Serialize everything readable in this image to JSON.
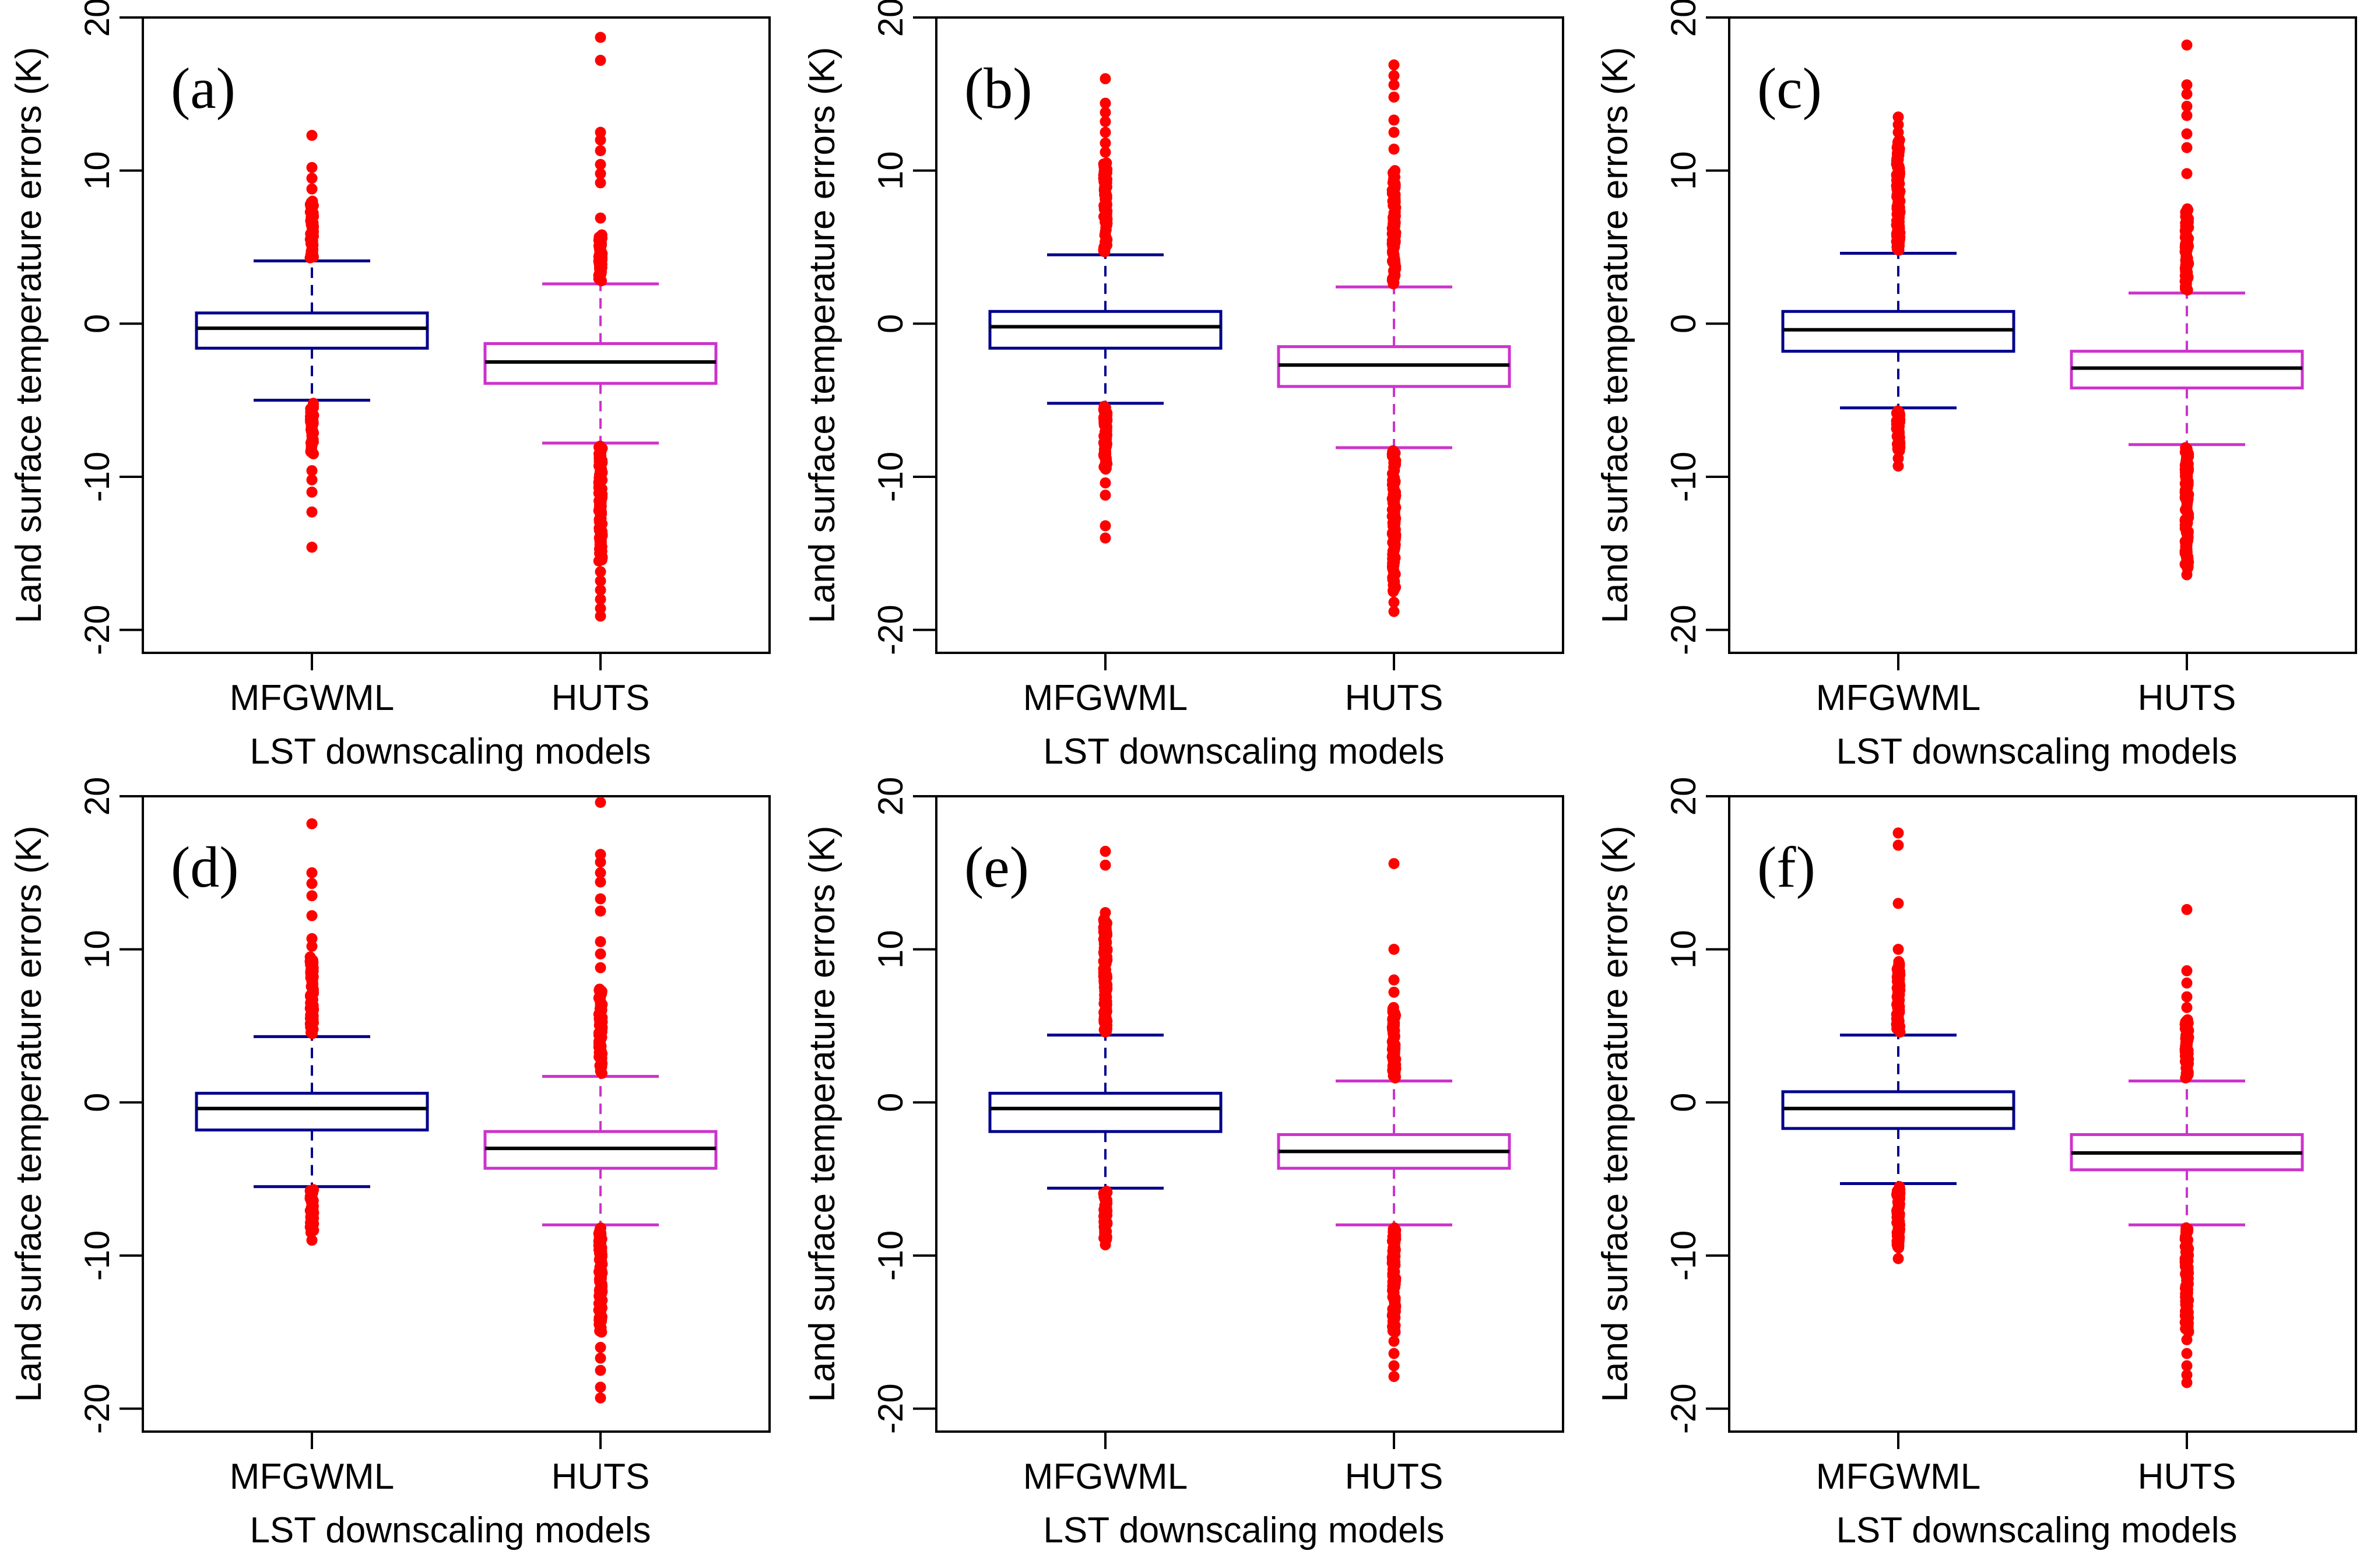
{
  "figure": {
    "x_axis_title": "LST downscaling models",
    "y_axis_title": "Land surface temperature errors (K)"
  },
  "colors": {
    "mfgwml_box": "#00008B",
    "huts_box": "#CC33CC",
    "median": "#000000",
    "outlier": "#FF0000",
    "frame": "#000000"
  },
  "chart_data": [
    {
      "type": "box",
      "panel": "(a)",
      "categories": [
        "MFGWML",
        "HUTS"
      ],
      "xlabel": "LST downscaling models",
      "ylabel": "Land surface temperature errors (K)",
      "ylim": [
        -21.5,
        20
      ],
      "yticks": [
        -20,
        -10,
        0,
        10,
        20
      ],
      "series": [
        {
          "name": "MFGWML",
          "q1": -1.6,
          "median": -0.3,
          "q3": 0.7,
          "whisker_low": -5.0,
          "whisker_high": 4.1,
          "outlier_bands": [
            [
              4.3,
              8.0
            ],
            [
              -8.5,
              -5.2
            ]
          ],
          "outliers": [
            10.2,
            9.5,
            8.8,
            12.3,
            -9.6,
            -10.2,
            -11.0,
            -12.3,
            -14.6
          ]
        },
        {
          "name": "HUTS",
          "q1": -3.9,
          "median": -2.5,
          "q3": -1.3,
          "whisker_low": -7.8,
          "whisker_high": 2.6,
          "outlier_bands": [
            [
              2.8,
              5.8
            ],
            [
              -8.0,
              -15.5
            ]
          ],
          "outliers": [
            6.9,
            9.2,
            9.8,
            10.4,
            11.3,
            12.0,
            12.5,
            17.2,
            18.7,
            -16.2,
            -16.8,
            -17.4,
            -18.0,
            -18.6,
            -19.1
          ]
        }
      ]
    },
    {
      "type": "box",
      "panel": "(b)",
      "categories": [
        "MFGWML",
        "HUTS"
      ],
      "xlabel": "LST downscaling models",
      "ylabel": "Land surface temperature errors (K)",
      "ylim": [
        -21.5,
        20
      ],
      "yticks": [
        -20,
        -10,
        0,
        10,
        20
      ],
      "series": [
        {
          "name": "MFGWML",
          "q1": -1.6,
          "median": -0.2,
          "q3": 0.8,
          "whisker_low": -5.2,
          "whisker_high": 4.5,
          "outlier_bands": [
            [
              4.7,
              10.5
            ],
            [
              -5.4,
              -9.5
            ]
          ],
          "outliers": [
            11.2,
            11.8,
            12.5,
            13.2,
            13.8,
            14.4,
            16.0,
            -10.4,
            -11.2,
            -13.2,
            -14.0
          ]
        },
        {
          "name": "HUTS",
          "q1": -4.1,
          "median": -2.7,
          "q3": -1.5,
          "whisker_low": -8.1,
          "whisker_high": 2.4,
          "outlier_bands": [
            [
              2.6,
              10.0
            ],
            [
              -8.3,
              -17.5
            ]
          ],
          "outliers": [
            11.4,
            12.5,
            13.3,
            14.8,
            15.6,
            16.2,
            16.9,
            -18.2,
            -18.8
          ]
        }
      ]
    },
    {
      "type": "box",
      "panel": "(c)",
      "categories": [
        "MFGWML",
        "HUTS"
      ],
      "xlabel": "LST downscaling models",
      "ylabel": "Land surface temperature errors (K)",
      "ylim": [
        -21.5,
        20
      ],
      "yticks": [
        -20,
        -10,
        0,
        10,
        20
      ],
      "series": [
        {
          "name": "MFGWML",
          "q1": -1.8,
          "median": -0.4,
          "q3": 0.8,
          "whisker_low": -5.5,
          "whisker_high": 4.6,
          "outlier_bands": [
            [
              4.8,
              12.0
            ],
            [
              -5.7,
              -8.3
            ]
          ],
          "outliers": [
            12.5,
            13.0,
            13.5,
            -8.8,
            -9.3
          ]
        },
        {
          "name": "HUTS",
          "q1": -4.2,
          "median": -2.9,
          "q3": -1.8,
          "whisker_low": -7.9,
          "whisker_high": 2.0,
          "outlier_bands": [
            [
              2.2,
              7.5
            ],
            [
              -8.1,
              -16.0
            ]
          ],
          "outliers": [
            9.8,
            11.5,
            12.4,
            13.6,
            14.2,
            15.0,
            15.6,
            18.2,
            -16.4
          ]
        }
      ]
    },
    {
      "type": "box",
      "panel": "(d)",
      "categories": [
        "MFGWML",
        "HUTS"
      ],
      "xlabel": "LST downscaling models",
      "ylabel": "Land surface temperature errors (K)",
      "ylim": [
        -21.5,
        20
      ],
      "yticks": [
        -20,
        -10,
        0,
        10,
        20
      ],
      "series": [
        {
          "name": "MFGWML",
          "q1": -1.8,
          "median": -0.4,
          "q3": 0.6,
          "whisker_low": -5.5,
          "whisker_high": 4.3,
          "outlier_bands": [
            [
              4.5,
              9.5
            ],
            [
              -5.7,
              -8.5
            ]
          ],
          "outliers": [
            10.2,
            10.7,
            12.2,
            13.5,
            14.3,
            15.0,
            18.2,
            -9.0
          ]
        },
        {
          "name": "HUTS",
          "q1": -4.3,
          "median": -3.0,
          "q3": -1.9,
          "whisker_low": -8.0,
          "whisker_high": 1.7,
          "outlier_bands": [
            [
              1.9,
              7.4
            ],
            [
              -8.2,
              -15.0
            ]
          ],
          "outliers": [
            8.8,
            9.7,
            10.5,
            12.5,
            13.3,
            14.4,
            15.0,
            15.7,
            16.2,
            19.6,
            -16.0,
            -16.7,
            -17.5,
            -18.6,
            -19.3
          ]
        }
      ]
    },
    {
      "type": "box",
      "panel": "(e)",
      "categories": [
        "MFGWML",
        "HUTS"
      ],
      "xlabel": "LST downscaling models",
      "ylabel": "Land surface temperature errors (K)",
      "ylim": [
        -21.5,
        20
      ],
      "yticks": [
        -20,
        -10,
        0,
        10,
        20
      ],
      "series": [
        {
          "name": "MFGWML",
          "q1": -1.9,
          "median": -0.4,
          "q3": 0.6,
          "whisker_low": -5.6,
          "whisker_high": 4.4,
          "outlier_bands": [
            [
              4.6,
              12.0
            ],
            [
              -5.8,
              -9.0
            ]
          ],
          "outliers": [
            12.4,
            15.5,
            16.4,
            -9.3
          ]
        },
        {
          "name": "HUTS",
          "q1": -4.3,
          "median": -3.2,
          "q3": -2.1,
          "whisker_low": -8.0,
          "whisker_high": 1.4,
          "outlier_bands": [
            [
              1.6,
              6.2
            ],
            [
              -8.2,
              -15.0
            ]
          ],
          "outliers": [
            7.2,
            8.0,
            10.0,
            15.6,
            -15.6,
            -16.4,
            -17.2,
            -17.9
          ]
        }
      ]
    },
    {
      "type": "box",
      "panel": "(f)",
      "categories": [
        "MFGWML",
        "HUTS"
      ],
      "xlabel": "LST downscaling models",
      "ylabel": "Land surface temperature errors (K)",
      "ylim": [
        -21.5,
        20
      ],
      "yticks": [
        -20,
        -10,
        0,
        10,
        20
      ],
      "series": [
        {
          "name": "MFGWML",
          "q1": -1.7,
          "median": -0.4,
          "q3": 0.7,
          "whisker_low": -5.3,
          "whisker_high": 4.4,
          "outlier_bands": [
            [
              4.6,
              9.2
            ],
            [
              -5.5,
              -9.5
            ]
          ],
          "outliers": [
            10.0,
            13.0,
            16.8,
            17.6,
            -10.2
          ]
        },
        {
          "name": "HUTS",
          "q1": -4.4,
          "median": -3.3,
          "q3": -2.1,
          "whisker_low": -8.0,
          "whisker_high": 1.4,
          "outlier_bands": [
            [
              1.6,
              5.4
            ],
            [
              -8.2,
              -15.0
            ]
          ],
          "outliers": [
            6.2,
            6.9,
            7.8,
            8.6,
            12.6,
            -15.5,
            -16.4,
            -17.2,
            -17.8,
            -18.3
          ]
        }
      ]
    }
  ]
}
